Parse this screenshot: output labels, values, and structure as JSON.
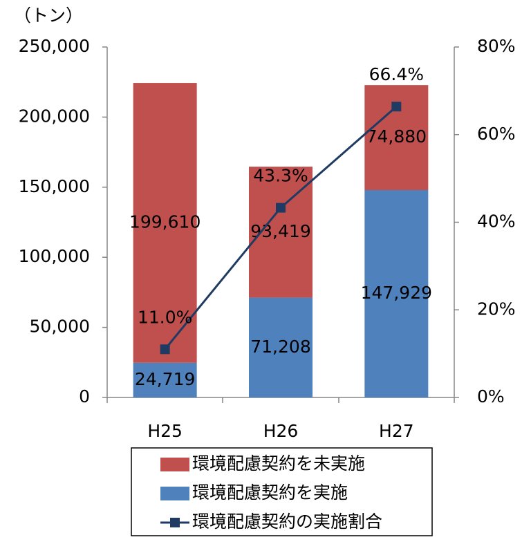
{
  "chart_data": {
    "type": "bar",
    "y_label": "（トン）",
    "categories": [
      "H25",
      "H26",
      "H27"
    ],
    "series": [
      {
        "name": "環境配慮契約を未実施",
        "color": "#c0504d",
        "values": [
          199610,
          93419,
          74880
        ],
        "value_labels": [
          "199,610",
          "93,419",
          "74,880"
        ]
      },
      {
        "name": "環境配慮契約を実施",
        "color": "#4f81bd",
        "values": [
          24719,
          71208,
          147929
        ],
        "value_labels": [
          "24,719",
          "71,208",
          "147,929"
        ]
      },
      {
        "name": "環境配慮契約の実施割合",
        "type": "line",
        "axis": "y2",
        "color": "#1f3b63",
        "values": [
          11.0,
          43.3,
          66.4
        ],
        "value_labels": [
          "11.0%",
          "43.3%",
          "66.4%"
        ]
      }
    ],
    "stacked": true,
    "ylim": [
      0,
      250000
    ],
    "yticks": [
      0,
      {
        "value": 50000,
        "label": "50,000"
      },
      {
        "value": 100000,
        "label": "100,000"
      },
      {
        "value": 150000,
        "label": "150,000"
      },
      {
        "value": 200000,
        "label": "200,000"
      },
      {
        "value": 250000,
        "label": "250,000"
      }
    ],
    "y2lim": [
      0,
      80
    ],
    "y2ticks": [
      {
        "value": 0,
        "label": "0%"
      },
      {
        "value": 20,
        "label": "20%"
      },
      {
        "value": 40,
        "label": "40%"
      },
      {
        "value": 60,
        "label": "60%"
      },
      {
        "value": 80,
        "label": "80%"
      }
    ],
    "legend": "bottom"
  }
}
